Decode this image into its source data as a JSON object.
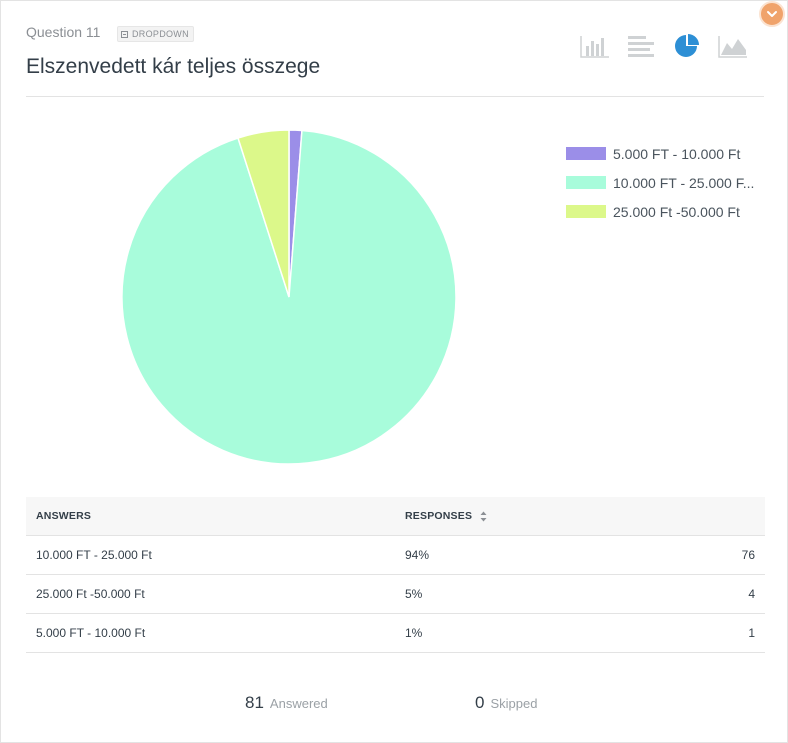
{
  "question": {
    "number_label": "Question 11",
    "type_label": "DROPDOWN",
    "title": "Elszenvedett kár teljes összege"
  },
  "toolbar": {
    "icons": [
      "vertical-bar-chart-icon",
      "horizontal-bar-chart-icon",
      "pie-chart-icon",
      "area-chart-icon"
    ],
    "active": "pie-chart-icon",
    "active_color": "#2d8fd5",
    "inactive_color": "#cfd2d4"
  },
  "chart_data": {
    "type": "pie",
    "categories": [
      "5.000 FT - 10.000 Ft",
      "10.000 FT - 25.000 Ft",
      "25.000 Ft -50.000 Ft"
    ],
    "values": [
      1,
      76,
      4
    ],
    "colors": [
      "#9b8ee8",
      "#a8fcdb",
      "#dcf88a"
    ],
    "legend_labels": [
      "5.000 FT - 10.000 Ft",
      "10.000 FT - 25.000 F...",
      "25.000 Ft -50.000 Ft"
    ],
    "legend_position": "right"
  },
  "table": {
    "headers": {
      "answers": "ANSWERS",
      "responses": "RESPONSES"
    },
    "rows": [
      {
        "answer": "10.000 FT - 25.000 Ft",
        "percent": "94%",
        "count": "76"
      },
      {
        "answer": "25.000 Ft -50.000 Ft",
        "percent": "5%",
        "count": "4"
      },
      {
        "answer": "5.000 FT - 10.000 Ft",
        "percent": "1%",
        "count": "1"
      }
    ]
  },
  "summary": {
    "answered_count": "81",
    "answered_label": "Answered",
    "skipped_count": "0",
    "skipped_label": "Skipped"
  }
}
